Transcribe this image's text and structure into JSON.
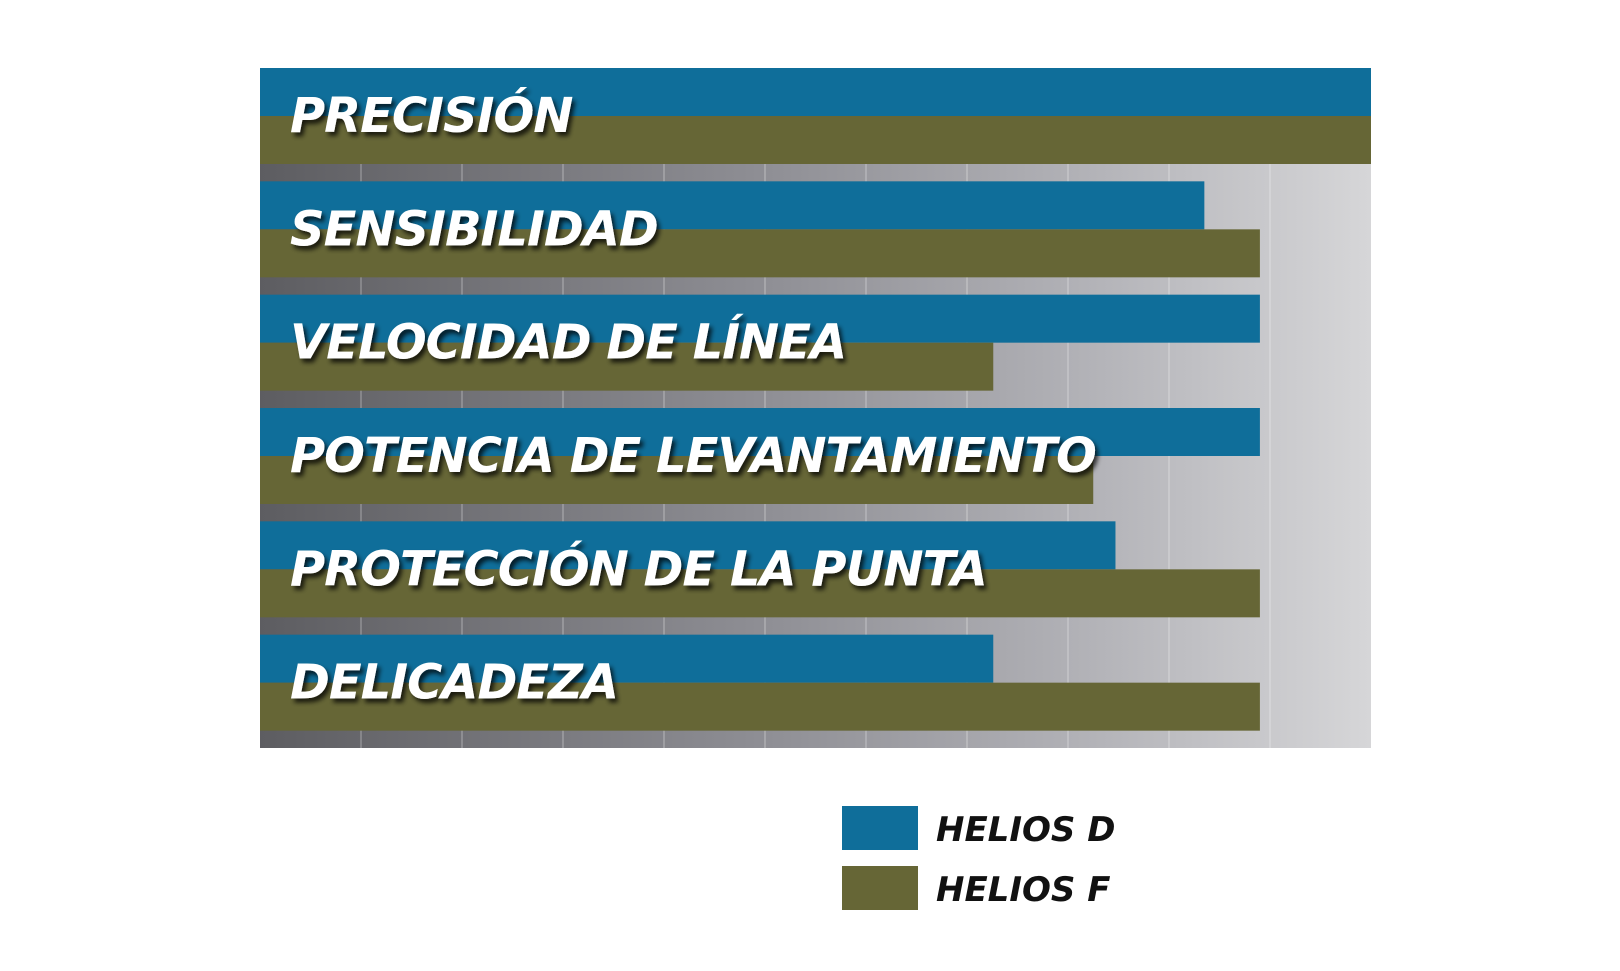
{
  "chart_data": {
    "type": "bar",
    "orientation": "horizontal",
    "categories": [
      "PRECISIÓN",
      "SENSIBILIDAD",
      "VELOCIDAD DE LÍNEA",
      "POTENCIA DE LEVANTAMIENTO",
      "PROTECCIÓN DE LA PUNTA",
      "DELICADEZA"
    ],
    "series": [
      {
        "name": "HELIOS D",
        "color": "#0f6e9a",
        "values": [
          10,
          8.5,
          9,
          9,
          7.7,
          6.6
        ]
      },
      {
        "name": "HELIOS F",
        "color": "#666636",
        "values": [
          10,
          9,
          6.6,
          7.5,
          9,
          9
        ]
      }
    ],
    "xlim": [
      0,
      10
    ],
    "grid": true,
    "legend_position": "bottom-right",
    "title": "",
    "xlabel": "",
    "ylabel": ""
  }
}
